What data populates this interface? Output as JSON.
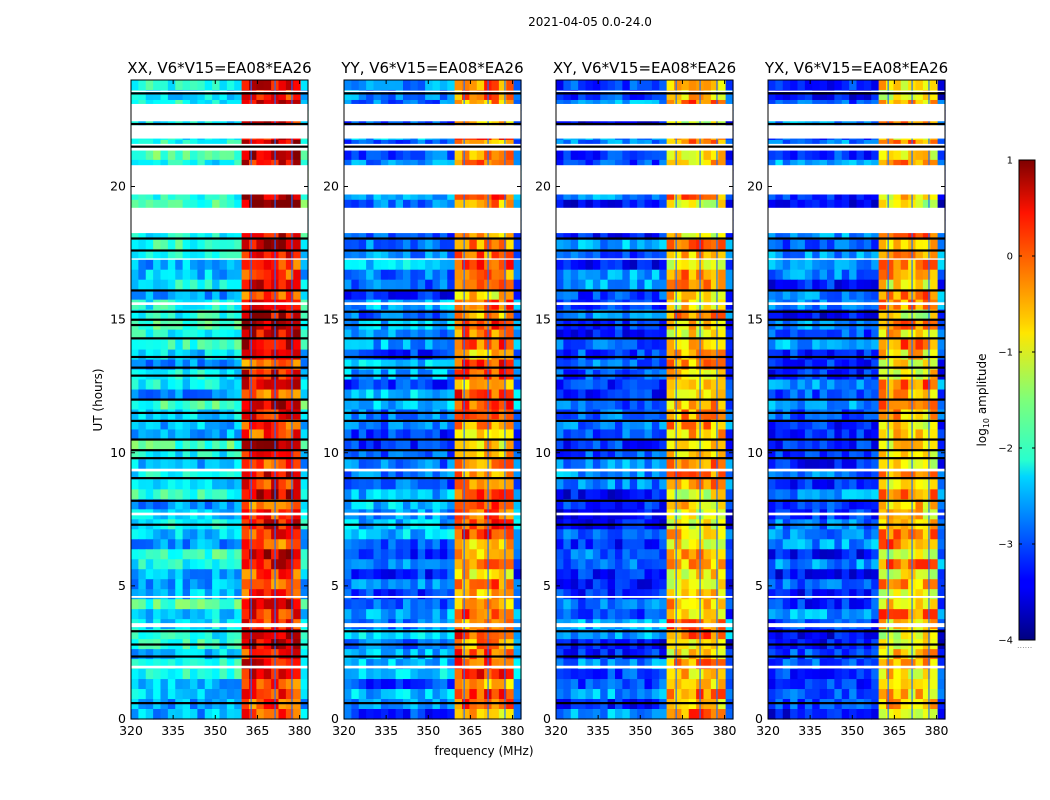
{
  "chart_data": {
    "type": "heatmap",
    "suptitle": "2021-04-05 0.0-24.0",
    "xlabel": "frequency (MHz)",
    "ylabel": "UT (hours)",
    "x_ticks": [
      "320",
      "335",
      "350",
      "365",
      "380"
    ],
    "y_ticks": [
      "0",
      "5",
      "10",
      "15",
      "20"
    ],
    "xlim": [
      320,
      383
    ],
    "ylim": [
      0,
      24
    ],
    "colorbar": {
      "label": "log",
      "label_sub": "10",
      "label_rest": " amplitude",
      "ticks": [
        "1",
        "0",
        "−1",
        "−2",
        "−3",
        "−4"
      ],
      "range": [
        -4,
        1
      ],
      "note": "......"
    },
    "panels": [
      {
        "title": "XX, V6*V15=EA08*EA26",
        "bright_band_mhz": [
          360,
          380
        ],
        "bright_level": 0.35,
        "background_level": -2.2
      },
      {
        "title": "YY, V6*V15=EA08*EA26",
        "bright_band_mhz": [
          360,
          380
        ],
        "bright_level": -0.3,
        "background_level": -2.8
      },
      {
        "title": "XY, V6*V15=EA08*EA26",
        "bright_band_mhz": [
          360,
          380
        ],
        "bright_level": -0.6,
        "background_level": -3.0
      },
      {
        "title": "YX, V6*V15=EA08*EA26",
        "bright_band_mhz": [
          360,
          380
        ],
        "bright_level": -0.6,
        "background_level": -3.0
      }
    ],
    "flagged_ut_intervals": [
      [
        1.9,
        2.0
      ],
      [
        3.45,
        3.6
      ],
      [
        4.55,
        4.62
      ],
      [
        7.65,
        7.75
      ],
      [
        9.3,
        9.4
      ],
      [
        15.55,
        15.65
      ],
      [
        17.25,
        17.3
      ],
      [
        18.25,
        19.2
      ],
      [
        19.7,
        20.8
      ],
      [
        21.35,
        21.6
      ],
      [
        21.8,
        22.3
      ],
      [
        22.45,
        23.1
      ],
      [
        23.55,
        23.6
      ]
    ],
    "dark_ut_lines": [
      0.6,
      2.35,
      2.8,
      3.3,
      7.3,
      8.2,
      9.05,
      9.8,
      10.1,
      10.5,
      11.2,
      11.5,
      12.0,
      12.9,
      13.2,
      13.6,
      14.3,
      14.8,
      15.0,
      15.3,
      16.1,
      17.6,
      18.05,
      21.5,
      22.35,
      23.5
    ]
  }
}
